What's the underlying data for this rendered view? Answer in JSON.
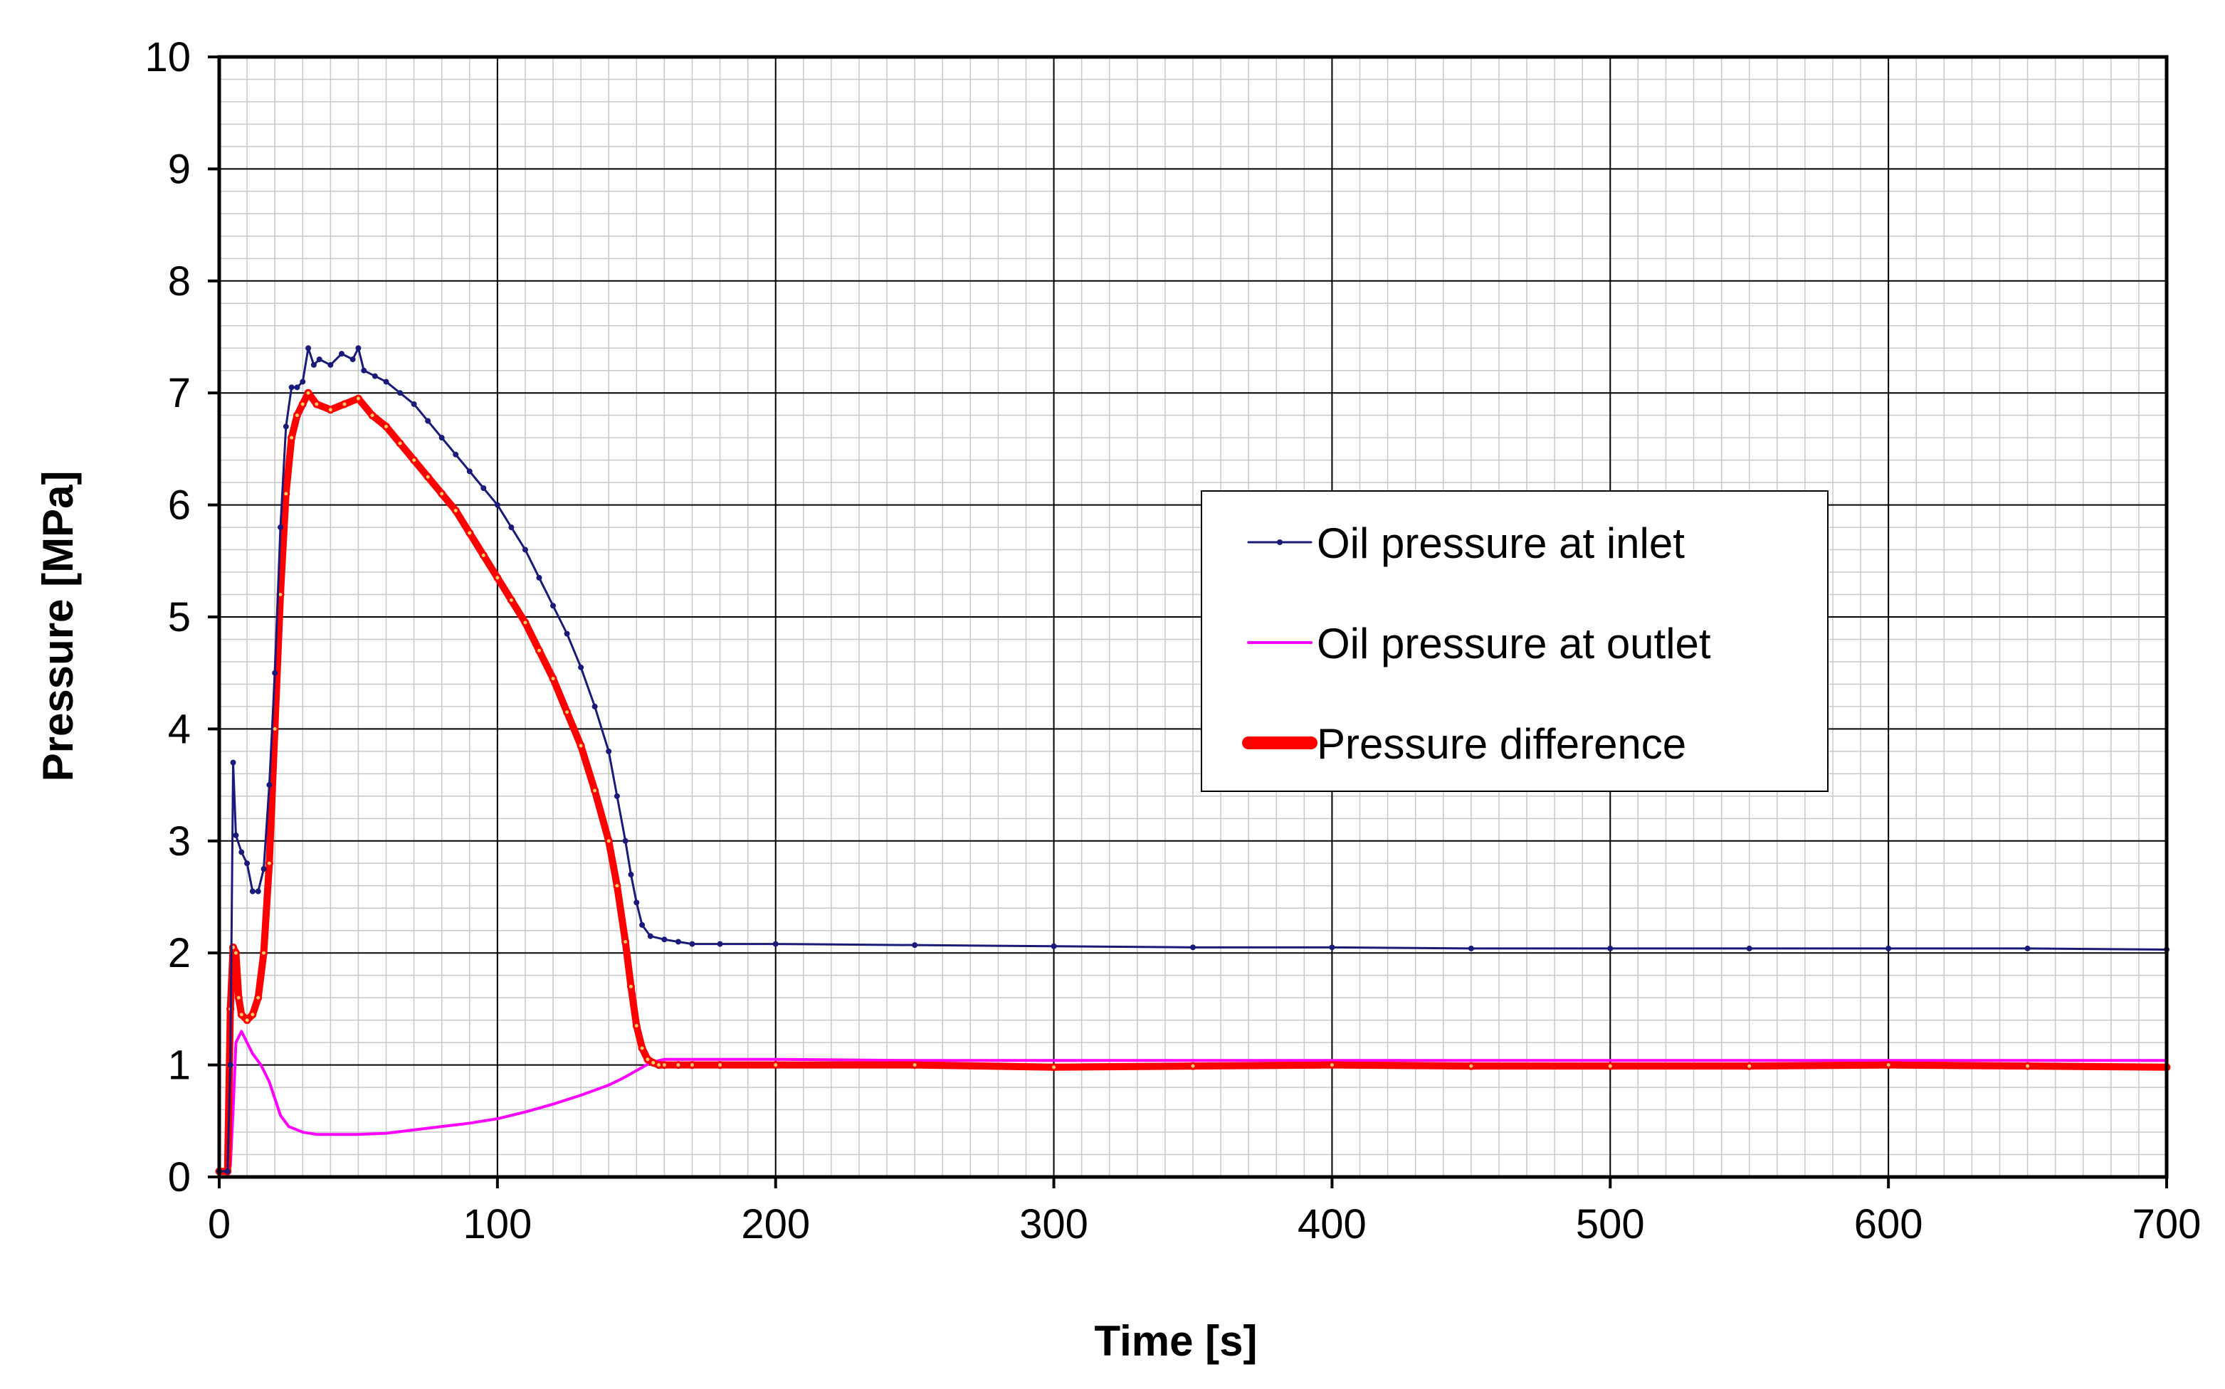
{
  "chart_data": {
    "type": "line",
    "title": "",
    "xlabel": "Time [s]",
    "ylabel": "Pressure [MPa]",
    "xlim": [
      0,
      700
    ],
    "ylim": [
      0,
      10
    ],
    "xticks": [
      0,
      100,
      200,
      300,
      400,
      500,
      600,
      700
    ],
    "yticks": [
      0,
      1,
      2,
      3,
      4,
      5,
      6,
      7,
      8,
      9,
      10
    ],
    "x_minor_step": 10,
    "y_minor_step": 0.2,
    "grid": true,
    "legend_position": "center-right",
    "series": [
      {
        "name": "Oil pressure at inlet",
        "color": "#1a1a7a",
        "marker": "small-dot",
        "x": [
          0,
          3,
          4,
          5,
          6,
          8,
          10,
          12,
          14,
          16,
          18,
          20,
          22,
          24,
          26,
          28,
          30,
          32,
          34,
          36,
          40,
          44,
          48,
          50,
          52,
          56,
          60,
          65,
          70,
          75,
          80,
          85,
          90,
          95,
          100,
          105,
          110,
          115,
          120,
          125,
          130,
          135,
          140,
          143,
          146,
          148,
          150,
          152,
          155,
          160,
          165,
          170,
          180,
          200,
          250,
          300,
          350,
          400,
          450,
          500,
          550,
          600,
          650,
          700
        ],
        "y": [
          0.05,
          0.05,
          1.0,
          3.7,
          3.05,
          2.9,
          2.8,
          2.55,
          2.55,
          2.75,
          3.5,
          4.5,
          5.8,
          6.7,
          7.05,
          7.05,
          7.1,
          7.4,
          7.25,
          7.3,
          7.25,
          7.35,
          7.3,
          7.4,
          7.2,
          7.15,
          7.1,
          7.0,
          6.9,
          6.75,
          6.6,
          6.45,
          6.3,
          6.15,
          6.0,
          5.8,
          5.6,
          5.35,
          5.1,
          4.85,
          4.55,
          4.2,
          3.8,
          3.4,
          3.0,
          2.7,
          2.45,
          2.25,
          2.15,
          2.12,
          2.1,
          2.08,
          2.08,
          2.08,
          2.07,
          2.06,
          2.05,
          2.05,
          2.04,
          2.04,
          2.04,
          2.04,
          2.04,
          2.03
        ]
      },
      {
        "name": "Oil pressure at outlet",
        "color": "#ff00ff",
        "marker": "none",
        "x": [
          0,
          3,
          4,
          5,
          6,
          8,
          10,
          12,
          15,
          18,
          20,
          22,
          25,
          30,
          35,
          40,
          50,
          60,
          70,
          80,
          90,
          100,
          110,
          120,
          130,
          140,
          145,
          150,
          155,
          160,
          170,
          200,
          250,
          300,
          350,
          400,
          450,
          500,
          550,
          600,
          650,
          700
        ],
        "y": [
          0.05,
          0.05,
          0.1,
          0.6,
          1.2,
          1.3,
          1.2,
          1.1,
          1.0,
          0.85,
          0.7,
          0.55,
          0.45,
          0.4,
          0.38,
          0.38,
          0.38,
          0.39,
          0.42,
          0.45,
          0.48,
          0.52,
          0.58,
          0.65,
          0.73,
          0.82,
          0.88,
          0.95,
          1.02,
          1.05,
          1.05,
          1.05,
          1.04,
          1.04,
          1.04,
          1.04,
          1.04,
          1.04,
          1.04,
          1.04,
          1.04,
          1.04
        ]
      },
      {
        "name": "Pressure difference",
        "color": "#ff0000",
        "marker": "large-dot",
        "x": [
          0,
          3,
          4,
          5,
          6,
          7,
          8,
          10,
          12,
          14,
          16,
          18,
          20,
          22,
          24,
          26,
          28,
          30,
          32,
          35,
          40,
          45,
          50,
          55,
          60,
          65,
          70,
          75,
          80,
          85,
          90,
          95,
          100,
          105,
          110,
          115,
          120,
          125,
          130,
          135,
          140,
          143,
          146,
          148,
          150,
          152,
          154,
          156,
          158,
          160,
          165,
          170,
          180,
          200,
          250,
          300,
          350,
          400,
          450,
          500,
          550,
          600,
          650,
          700
        ],
        "y": [
          0.05,
          0.05,
          1.5,
          2.05,
          2.0,
          1.6,
          1.45,
          1.4,
          1.45,
          1.6,
          2.0,
          2.8,
          4.0,
          5.2,
          6.1,
          6.6,
          6.8,
          6.9,
          7.0,
          6.9,
          6.85,
          6.9,
          6.95,
          6.8,
          6.7,
          6.55,
          6.4,
          6.25,
          6.1,
          5.95,
          5.75,
          5.55,
          5.35,
          5.15,
          4.95,
          4.7,
          4.45,
          4.15,
          3.85,
          3.45,
          3.0,
          2.6,
          2.1,
          1.7,
          1.35,
          1.15,
          1.05,
          1.02,
          1.0,
          1.0,
          1.0,
          1.0,
          1.0,
          1.0,
          1.0,
          0.98,
          0.99,
          1.0,
          0.99,
          0.99,
          0.99,
          1.0,
          0.99,
          0.98
        ]
      }
    ]
  }
}
